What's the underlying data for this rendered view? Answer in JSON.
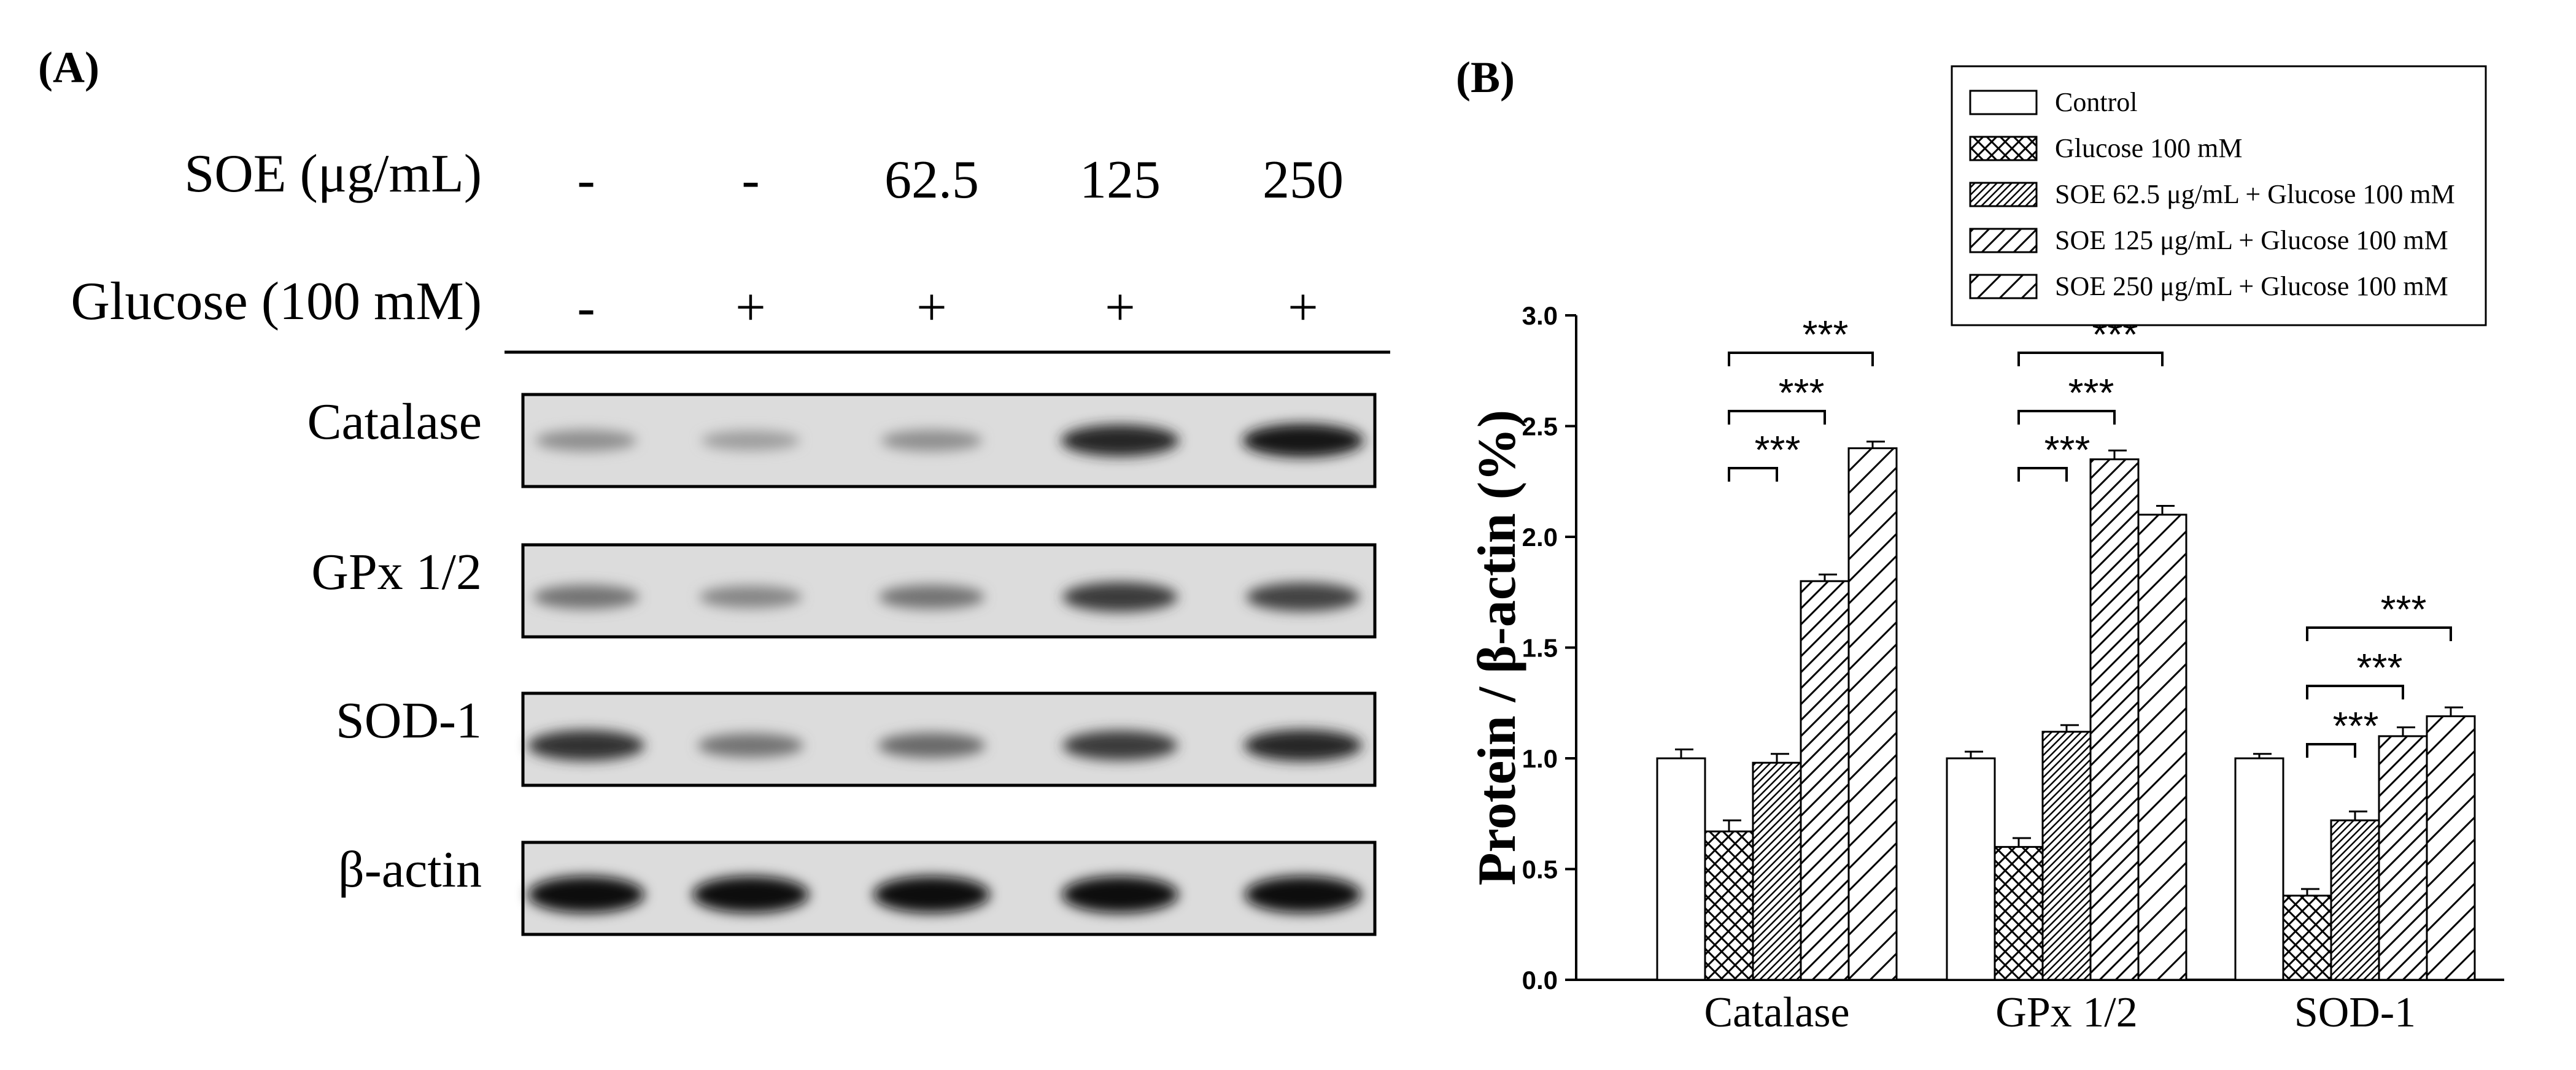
{
  "panelA": {
    "label": "(A)",
    "rows": [
      {
        "label": "SOE (μg/mL)",
        "values": [
          "-",
          "-",
          "62.5",
          "125",
          "250"
        ]
      },
      {
        "label": "Glucose (100 mM)",
        "values": [
          "-",
          "+",
          "+",
          "+",
          "+"
        ]
      }
    ],
    "blots": [
      {
        "label": "Catalase",
        "intensity": [
          0.3,
          0.22,
          0.3,
          0.85,
          0.95
        ]
      },
      {
        "label": "GPx 1/2",
        "intensity": [
          0.45,
          0.35,
          0.45,
          0.75,
          0.7
        ]
      },
      {
        "label": "SOD-1",
        "intensity": [
          0.8,
          0.45,
          0.5,
          0.75,
          0.85
        ]
      },
      {
        "label": "β-actin",
        "intensity": [
          1.0,
          1.0,
          1.0,
          1.0,
          1.0
        ]
      }
    ]
  },
  "panelB": {
    "label": "(B)"
  },
  "chart_data": {
    "type": "bar",
    "categories": [
      "Catalase",
      "GPx 1/2",
      "SOD-1"
    ],
    "ylabel": "Protein / β-actin (%)",
    "xlabel": "",
    "ylim": [
      0,
      3.0
    ],
    "yticks": [
      "0.0",
      "0.5",
      "1.0",
      "1.5",
      "2.0",
      "2.5",
      "3.0"
    ],
    "legend_position": "top-right",
    "series": [
      {
        "name": "Control",
        "pattern": "none",
        "values": [
          1.0,
          1.0,
          1.0
        ],
        "errors": [
          0.04,
          0.03,
          0.02
        ]
      },
      {
        "name": "Glucose 100 mM",
        "pattern": "crosshatch",
        "values": [
          0.67,
          0.6,
          0.38
        ],
        "errors": [
          0.05,
          0.04,
          0.03
        ]
      },
      {
        "name": "SOE 62.5 μg/mL + Glucose 100 mM",
        "pattern": "dense-diagonal",
        "values": [
          0.98,
          1.12,
          0.72
        ],
        "errors": [
          0.04,
          0.03,
          0.04
        ]
      },
      {
        "name": "SOE 125 μg/mL + Glucose 100 mM",
        "pattern": "diagonal",
        "values": [
          1.8,
          2.35,
          1.1
        ],
        "errors": [
          0.03,
          0.04,
          0.04
        ]
      },
      {
        "name": "SOE 250 μg/mL + Glucose 100 mM",
        "pattern": "sparse-diagonal",
        "values": [
          2.4,
          2.1,
          1.19
        ],
        "errors": [
          0.03,
          0.04,
          0.04
        ]
      }
    ],
    "significance": [
      {
        "category": 0,
        "from": 1,
        "to": 2,
        "label": "***"
      },
      {
        "category": 0,
        "from": 1,
        "to": 3,
        "label": "***"
      },
      {
        "category": 0,
        "from": 1,
        "to": 4,
        "label": "***"
      },
      {
        "category": 1,
        "from": 1,
        "to": 2,
        "label": "***"
      },
      {
        "category": 1,
        "from": 1,
        "to": 3,
        "label": "***"
      },
      {
        "category": 1,
        "from": 1,
        "to": 4,
        "label": "***"
      },
      {
        "category": 2,
        "from": 1,
        "to": 2,
        "label": "***"
      },
      {
        "category": 2,
        "from": 1,
        "to": 3,
        "label": "***"
      },
      {
        "category": 2,
        "from": 1,
        "to": 4,
        "label": "***"
      }
    ]
  }
}
